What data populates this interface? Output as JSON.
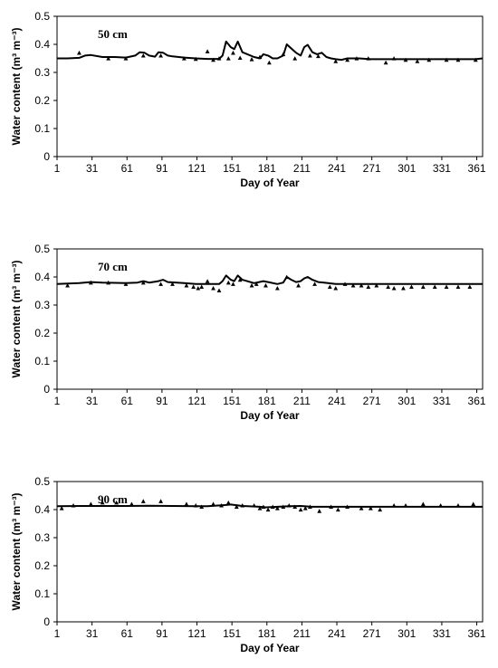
{
  "chart_data": [
    {
      "type": "line",
      "label": "50 cm",
      "xlabel": "Day of Year",
      "ylabel": "Water content (m³ m⁻³)",
      "xlim": [
        1,
        366
      ],
      "ylim": [
        0,
        0.5
      ],
      "xticks": [
        "1",
        "31",
        "61",
        "91",
        "121",
        "151",
        "181",
        "211",
        "241",
        "271",
        "301",
        "331",
        "361"
      ],
      "yticks": [
        "0",
        "0.1",
        "0.2",
        "0.3",
        "0.4",
        "0.5"
      ],
      "grid": false,
      "series": [
        {
          "style": "line",
          "x": [
            1,
            10,
            20,
            25,
            30,
            40,
            50,
            60,
            68,
            72,
            76,
            80,
            85,
            88,
            92,
            96,
            100,
            110,
            120,
            130,
            140,
            143,
            146,
            150,
            153,
            156,
            160,
            170,
            175,
            178,
            182,
            186,
            190,
            195,
            198,
            202,
            206,
            210,
            213,
            216,
            220,
            224,
            228,
            232,
            236,
            240,
            245,
            250,
            260,
            270,
            280,
            300,
            320,
            340,
            360,
            366
          ],
          "y": [
            0.35,
            0.35,
            0.352,
            0.36,
            0.362,
            0.355,
            0.355,
            0.353,
            0.36,
            0.372,
            0.37,
            0.36,
            0.356,
            0.372,
            0.37,
            0.36,
            0.357,
            0.353,
            0.35,
            0.348,
            0.348,
            0.36,
            0.41,
            0.39,
            0.383,
            0.41,
            0.372,
            0.355,
            0.35,
            0.365,
            0.36,
            0.35,
            0.35,
            0.36,
            0.4,
            0.385,
            0.37,
            0.36,
            0.39,
            0.398,
            0.372,
            0.365,
            0.37,
            0.355,
            0.35,
            0.347,
            0.345,
            0.35,
            0.35,
            0.347,
            0.347,
            0.347,
            0.347,
            0.347,
            0.347,
            0.35
          ]
        },
        {
          "style": "marker",
          "x": [
            20,
            45,
            60,
            75,
            90,
            110,
            120,
            130,
            135,
            140,
            148,
            152,
            158,
            168,
            175,
            183,
            195,
            205,
            218,
            225,
            240,
            250,
            258,
            268,
            283,
            290,
            300,
            310,
            320,
            335,
            345,
            360
          ],
          "y": [
            0.37,
            0.35,
            0.35,
            0.36,
            0.36,
            0.35,
            0.348,
            0.375,
            0.345,
            0.35,
            0.35,
            0.37,
            0.352,
            0.347,
            0.355,
            0.335,
            0.365,
            0.35,
            0.36,
            0.358,
            0.34,
            0.345,
            0.35,
            0.35,
            0.335,
            0.35,
            0.345,
            0.34,
            0.345,
            0.345,
            0.345,
            0.345
          ]
        }
      ]
    },
    {
      "type": "line",
      "label": "70 cm",
      "xlabel": "Day of Year",
      "ylabel": "Water content (m³ m⁻³)",
      "xlim": [
        1,
        366
      ],
      "ylim": [
        0,
        0.5
      ],
      "xticks": [
        "1",
        "31",
        "61",
        "91",
        "121",
        "151",
        "181",
        "211",
        "241",
        "271",
        "301",
        "331",
        "361"
      ],
      "yticks": [
        "0",
        "0.1",
        "0.2",
        "0.3",
        "0.4",
        "0.5"
      ],
      "grid": false,
      "series": [
        {
          "style": "line",
          "x": [
            1,
            20,
            30,
            40,
            60,
            70,
            75,
            80,
            88,
            92,
            96,
            110,
            120,
            130,
            140,
            143,
            146,
            150,
            153,
            156,
            160,
            170,
            178,
            182,
            190,
            195,
            198,
            202,
            206,
            210,
            213,
            216,
            220,
            225,
            230,
            240,
            260,
            300,
            340,
            366
          ],
          "y": [
            0.375,
            0.378,
            0.382,
            0.38,
            0.378,
            0.38,
            0.385,
            0.38,
            0.385,
            0.39,
            0.382,
            0.378,
            0.375,
            0.375,
            0.375,
            0.385,
            0.405,
            0.39,
            0.385,
            0.405,
            0.39,
            0.378,
            0.385,
            0.382,
            0.375,
            0.38,
            0.4,
            0.39,
            0.382,
            0.385,
            0.395,
            0.4,
            0.39,
            0.382,
            0.38,
            0.375,
            0.375,
            0.375,
            0.375,
            0.375
          ]
        },
        {
          "style": "marker",
          "x": [
            10,
            30,
            45,
            60,
            75,
            90,
            100,
            112,
            118,
            122,
            125,
            130,
            135,
            140,
            148,
            152,
            158,
            168,
            172,
            180,
            190,
            198,
            208,
            222,
            235,
            240,
            248,
            255,
            262,
            268,
            275,
            285,
            290,
            298,
            305,
            315,
            325,
            335,
            345,
            355
          ],
          "y": [
            0.37,
            0.38,
            0.38,
            0.375,
            0.38,
            0.375,
            0.375,
            0.37,
            0.365,
            0.36,
            0.365,
            0.385,
            0.36,
            0.352,
            0.38,
            0.375,
            0.39,
            0.37,
            0.375,
            0.37,
            0.36,
            0.4,
            0.37,
            0.375,
            0.365,
            0.36,
            0.375,
            0.37,
            0.37,
            0.365,
            0.37,
            0.365,
            0.36,
            0.36,
            0.365,
            0.365,
            0.365,
            0.365,
            0.365,
            0.365
          ]
        }
      ]
    },
    {
      "type": "line",
      "label": "90 cm",
      "xlabel": "Day of Year",
      "ylabel": "Water content (m³ m⁻³)",
      "xlim": [
        1,
        366
      ],
      "ylim": [
        0,
        0.5
      ],
      "xticks": [
        "1",
        "31",
        "61",
        "91",
        "121",
        "151",
        "181",
        "211",
        "241",
        "271",
        "301",
        "331",
        "361"
      ],
      "yticks": [
        "0",
        "0.1",
        "0.2",
        "0.3",
        "0.4",
        "0.5"
      ],
      "grid": false,
      "series": [
        {
          "style": "line",
          "x": [
            1,
            20,
            40,
            60,
            80,
            100,
            120,
            130,
            145,
            150,
            160,
            175,
            180,
            190,
            200,
            210,
            220,
            230,
            250,
            280,
            320,
            366
          ],
          "y": [
            0.412,
            0.413,
            0.413,
            0.413,
            0.414,
            0.413,
            0.412,
            0.412,
            0.416,
            0.418,
            0.413,
            0.41,
            0.408,
            0.41,
            0.412,
            0.413,
            0.41,
            0.41,
            0.41,
            0.41,
            0.41,
            0.41
          ]
        },
        {
          "style": "marker",
          "x": [
            5,
            15,
            30,
            40,
            52,
            65,
            75,
            90,
            112,
            120,
            125,
            135,
            142,
            148,
            155,
            160,
            170,
            175,
            178,
            182,
            186,
            190,
            195,
            200,
            205,
            210,
            214,
            218,
            226,
            236,
            242,
            250,
            262,
            270,
            278,
            290,
            300,
            315,
            330,
            345,
            358
          ],
          "y": [
            0.405,
            0.415,
            0.42,
            0.425,
            0.425,
            0.42,
            0.43,
            0.43,
            0.42,
            0.415,
            0.41,
            0.42,
            0.415,
            0.425,
            0.41,
            0.415,
            0.415,
            0.405,
            0.41,
            0.4,
            0.41,
            0.405,
            0.41,
            0.415,
            0.41,
            0.4,
            0.405,
            0.41,
            0.395,
            0.41,
            0.4,
            0.41,
            0.405,
            0.405,
            0.4,
            0.415,
            0.415,
            0.42,
            0.415,
            0.415,
            0.42
          ]
        }
      ]
    }
  ]
}
